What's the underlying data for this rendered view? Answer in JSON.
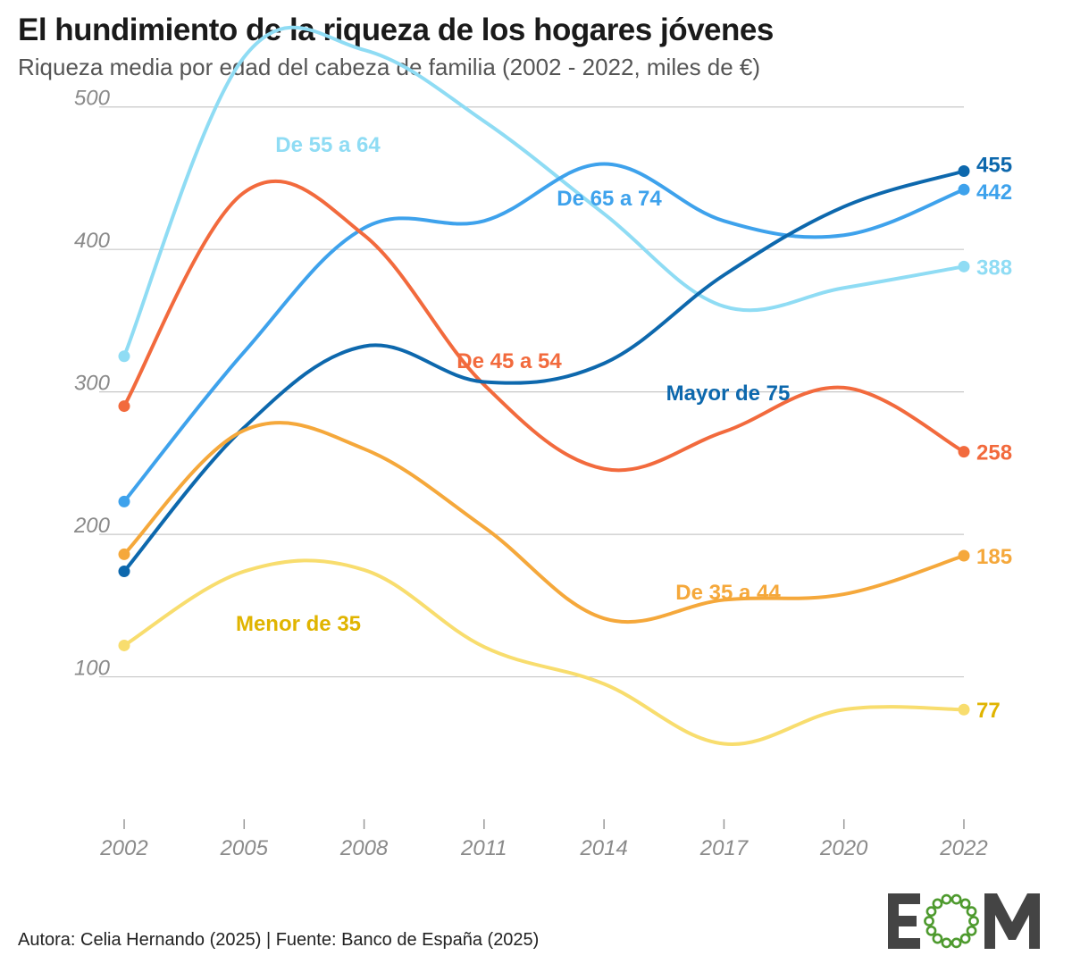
{
  "header": {
    "title": "El hundimiento de la riqueza de los hogares jóvenes",
    "subtitle": "Riqueza media por edad del cabeza de familia (2002 - 2022, miles de €)"
  },
  "footer": {
    "credit": "Autora: Celia Hernando (2025) | Fuente: Banco de España (2025)"
  },
  "logo": {
    "text": "EOM",
    "icon": "eom-logo-icon",
    "ring_color": "#4e9a2e",
    "letter_color": "#444444"
  },
  "chart_data": {
    "type": "line",
    "x": [
      2002,
      2005,
      2008,
      2011,
      2014,
      2017,
      2020,
      2022
    ],
    "y_ticks": [
      100,
      200,
      300,
      400,
      500
    ],
    "ylim": [
      0,
      550
    ],
    "grid": true,
    "legend": "inline labels",
    "series": [
      {
        "name": "De 55 a 64",
        "color": "#8fdcf4",
        "end_label": "388",
        "values": [
          325,
          535,
          540,
          490,
          425,
          360,
          373,
          388
        ]
      },
      {
        "name": "De 65 a 74",
        "color": "#3ea2ec",
        "end_label": "442",
        "values": [
          223,
          328,
          415,
          420,
          460,
          420,
          410,
          442
        ]
      },
      {
        "name": "De 45 a 54",
        "color": "#f26a3d",
        "end_label": "258",
        "values": [
          290,
          440,
          410,
          305,
          246,
          272,
          303,
          258
        ]
      },
      {
        "name": "Mayor de 75",
        "color": "#0d68ad",
        "end_label": "455",
        "values": [
          174,
          275,
          332,
          307,
          320,
          382,
          430,
          455
        ]
      },
      {
        "name": "De 35 a 44",
        "color": "#f5a83b",
        "end_label": "185",
        "values": [
          186,
          273,
          260,
          205,
          141,
          154,
          158,
          185
        ]
      },
      {
        "name": "Menor de 35",
        "color": "#f8dd6e",
        "label_color": "#e0b400",
        "end_label": "77",
        "values": [
          122,
          174,
          175,
          121,
          95,
          53,
          77,
          77
        ]
      }
    ]
  }
}
